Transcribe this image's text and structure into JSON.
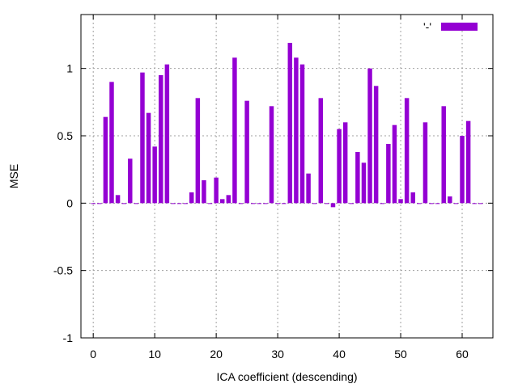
{
  "chart_data": {
    "type": "bar",
    "xlabel": "ICA coefficient (descending)",
    "ylabel": "MSE",
    "xlim": [
      -2,
      65
    ],
    "ylim": [
      -1,
      1.4
    ],
    "xticks": [
      0,
      10,
      20,
      30,
      40,
      50,
      60
    ],
    "yticks": [
      -1,
      -0.5,
      0,
      0.5,
      1
    ],
    "ytick_labels": [
      "-1",
      "-0.5",
      "0",
      "0.5",
      "1"
    ],
    "grid": true,
    "legend": {
      "position": "top-right",
      "label": "'-'",
      "color": "#9400d3"
    },
    "series": [
      {
        "name": "'-'",
        "color": "#9400d3",
        "x": [
          0,
          1,
          2,
          3,
          4,
          5,
          6,
          7,
          8,
          9,
          10,
          11,
          12,
          13,
          14,
          15,
          16,
          17,
          18,
          19,
          20,
          21,
          22,
          23,
          24,
          25,
          26,
          27,
          28,
          29,
          30,
          31,
          32,
          33,
          34,
          35,
          36,
          37,
          38,
          39,
          40,
          41,
          42,
          43,
          44,
          45,
          46,
          47,
          48,
          49,
          50,
          51,
          52,
          53,
          54,
          55,
          56,
          57,
          58,
          59,
          60,
          61,
          62,
          63
        ],
        "values": [
          0,
          0,
          0.64,
          0.9,
          0.06,
          0,
          0.33,
          0,
          0.97,
          0.67,
          0.42,
          0.95,
          1.03,
          0,
          0,
          0,
          0.08,
          0.78,
          0.17,
          0,
          0.19,
          0.03,
          0.06,
          1.08,
          0,
          0.76,
          0,
          0,
          0,
          0.72,
          0,
          0,
          1.19,
          1.08,
          1.03,
          0.22,
          0,
          0.78,
          0,
          -0.03,
          0.55,
          0.6,
          0,
          0.38,
          0.3,
          1.0,
          0.87,
          0,
          0.44,
          0.58,
          0.03,
          0.78,
          0.08,
          0,
          0.6,
          0,
          0,
          0.72,
          0.05,
          0,
          0.5,
          0.61,
          0,
          0
        ]
      }
    ]
  }
}
